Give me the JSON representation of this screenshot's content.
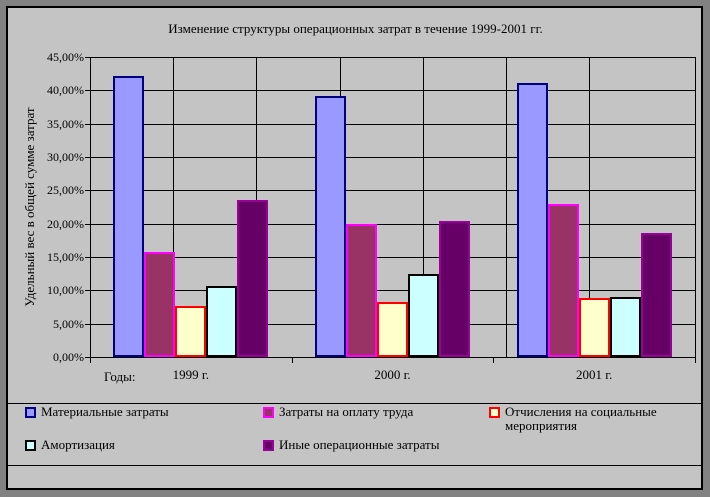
{
  "title": "Изменение структуры операционных затрат в течение 1999-2001 гг.",
  "y_axis": {
    "title": "Удельный вес в общей сумме затрат",
    "tick_labels": [
      "45,00%",
      "40,00%",
      "35,00%",
      "30,00%",
      "25,00%",
      "20,00%",
      "15,00%",
      "10,00%",
      "5,00%",
      "0,00%"
    ]
  },
  "x_axis": {
    "label": "Годы:",
    "categories": [
      "1999 г.",
      "2000 г.",
      "2001 г."
    ]
  },
  "legend": {
    "items": [
      "Материальные затраты",
      "Затраты на оплату труда",
      "Отчисления на социальные мероприятия",
      "Амортизация",
      "Иные операционные затраты"
    ]
  },
  "colors": {
    "chart_background": "#C4C4C4",
    "outer_background": "#828282",
    "gridline": "#000000"
  },
  "chart_data": {
    "type": "bar",
    "title": "Изменение структуры операционных затрат в течение 1999-2001 гг.",
    "xlabel": "Годы:",
    "ylabel": "Удельный вес в общей сумме затрат",
    "categories": [
      "1999 г.",
      "2000 г.",
      "2001 г."
    ],
    "series": [
      {
        "name": "Материальные затраты",
        "values": [
          42.2,
          39.2,
          41.1
        ],
        "fill": "#9999FF",
        "border": "#000080"
      },
      {
        "name": "Затраты на оплату труда",
        "values": [
          15.8,
          20.0,
          22.9
        ],
        "fill": "#993366",
        "border": "#FF00FF"
      },
      {
        "name": "Отчисления на социальные мероприятия",
        "values": [
          7.6,
          8.2,
          8.8
        ],
        "fill": "#FFFFCC",
        "border": "#FF0000"
      },
      {
        "name": "Амортизация",
        "values": [
          10.7,
          12.5,
          9.0
        ],
        "fill": "#CCFFFF",
        "border": "#000000"
      },
      {
        "name": "Иные операционные затраты",
        "values": [
          23.6,
          20.4,
          18.6
        ],
        "fill": "#660066",
        "border": "#990099"
      }
    ],
    "ylim": [
      0,
      45
    ],
    "ytick_step": 5,
    "ytick_format": "percent, comma decimal, 2 dp",
    "grid": true,
    "legend_position": "bottom"
  }
}
